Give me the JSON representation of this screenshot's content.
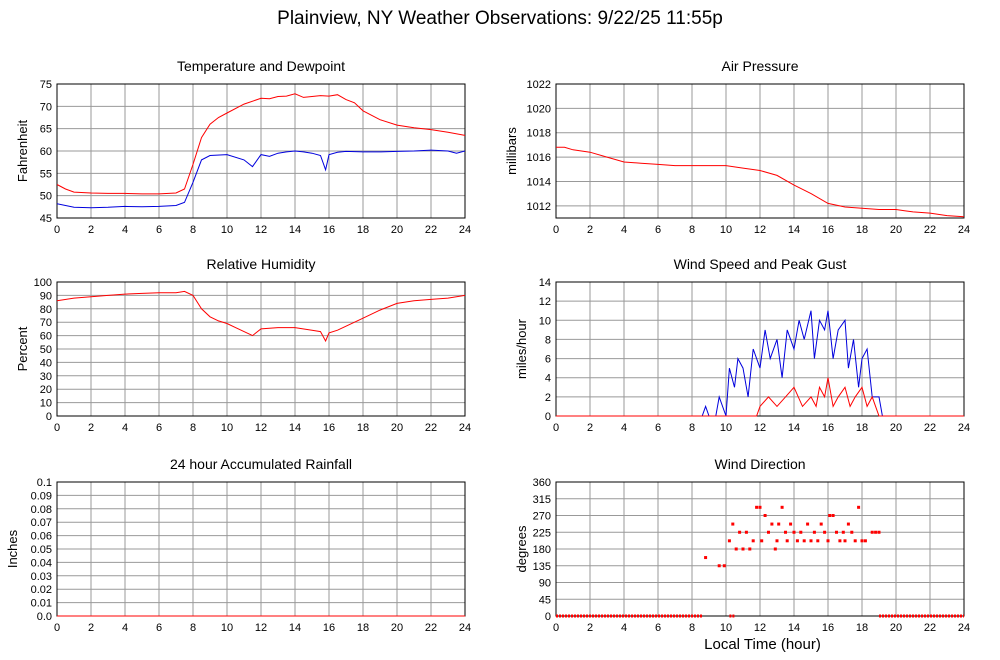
{
  "page": {
    "title": "Plainview, NY Weather Observations: 9/22/25 11:55p",
    "x_axis_title": "Local Time (hour)"
  },
  "colors": {
    "red": "#ff0000",
    "blue": "#0000dd",
    "grid": "#999999"
  },
  "chart_data": [
    {
      "id": "temperature",
      "type": "line",
      "title": "Temperature and Dewpoint",
      "ylabel": "Fahrenheit",
      "xlim": [
        0,
        24
      ],
      "ylim": [
        45,
        75
      ],
      "xticks": [
        0,
        2,
        4,
        6,
        8,
        10,
        12,
        14,
        16,
        18,
        20,
        22,
        24
      ],
      "yticks": [
        45,
        50,
        55,
        60,
        65,
        70,
        75
      ],
      "grid": true,
      "series": [
        {
          "color": "red",
          "x": [
            0,
            0.5,
            1,
            2,
            3,
            4,
            5,
            6,
            7,
            7.5,
            8,
            8.5,
            9,
            9.5,
            10,
            11,
            12,
            12.5,
            13,
            13.5,
            14,
            14.5,
            15,
            15.5,
            16,
            16.5,
            17,
            17.5,
            18,
            19,
            20,
            21,
            22,
            23,
            24
          ],
          "y": [
            52.5,
            51.5,
            50.8,
            50.6,
            50.5,
            50.5,
            50.4,
            50.4,
            50.6,
            51.5,
            57,
            63,
            66,
            67.5,
            68.5,
            70.5,
            71.8,
            71.7,
            72.2,
            72.3,
            72.8,
            72,
            72.2,
            72.4,
            72.3,
            72.6,
            71.5,
            70.8,
            69,
            67,
            65.8,
            65.2,
            64.8,
            64.2,
            63.5
          ]
        },
        {
          "color": "blue",
          "x": [
            0,
            1,
            2,
            3,
            4,
            5,
            6,
            7,
            7.5,
            8,
            8.5,
            9,
            10,
            11,
            11.5,
            12,
            12.5,
            13,
            13.5,
            14,
            14.5,
            15,
            15.5,
            15.8,
            16,
            16.5,
            17,
            18,
            19,
            20,
            21,
            22,
            23,
            23.5,
            24
          ],
          "y": [
            48.2,
            47.4,
            47.3,
            47.4,
            47.6,
            47.5,
            47.6,
            47.8,
            48.5,
            53,
            58,
            59,
            59.2,
            58,
            56.5,
            59.2,
            58.8,
            59.5,
            59.8,
            60,
            59.8,
            59.5,
            59,
            55.8,
            59.2,
            59.7,
            59.9,
            59.8,
            59.8,
            59.9,
            60,
            60.2,
            60,
            59.5,
            60
          ]
        }
      ]
    },
    {
      "id": "pressure",
      "type": "line",
      "title": "Air Pressure",
      "ylabel": "millibars",
      "xlim": [
        0,
        24
      ],
      "ylim": [
        1011,
        1022
      ],
      "xticks": [
        0,
        2,
        4,
        6,
        8,
        10,
        12,
        14,
        16,
        18,
        20,
        22,
        24
      ],
      "yticks": [
        1012,
        1014,
        1016,
        1018,
        1020,
        1022
      ],
      "grid": true,
      "series": [
        {
          "color": "red",
          "x": [
            0,
            0.5,
            1,
            2,
            3,
            4,
            5,
            6,
            7,
            8,
            9,
            10,
            11,
            12,
            13,
            14,
            15,
            16,
            17,
            18,
            19,
            20,
            20.5,
            21,
            22,
            23,
            24
          ],
          "y": [
            1016.8,
            1016.8,
            1016.6,
            1016.4,
            1016,
            1015.6,
            1015.5,
            1015.4,
            1015.3,
            1015.3,
            1015.3,
            1015.3,
            1015.1,
            1014.9,
            1014.5,
            1013.7,
            1013,
            1012.2,
            1011.9,
            1011.8,
            1011.7,
            1011.7,
            1011.6,
            1011.5,
            1011.4,
            1011.2,
            1011.1
          ]
        }
      ]
    },
    {
      "id": "humidity",
      "type": "line",
      "title": "Relative Humidity",
      "ylabel": "Percent",
      "xlim": [
        0,
        24
      ],
      "ylim": [
        0,
        100
      ],
      "xticks": [
        0,
        2,
        4,
        6,
        8,
        10,
        12,
        14,
        16,
        18,
        20,
        22,
        24
      ],
      "yticks": [
        0,
        10,
        20,
        30,
        40,
        50,
        60,
        70,
        80,
        90,
        100
      ],
      "grid": true,
      "series": [
        {
          "color": "red",
          "x": [
            0,
            1,
            2,
            3,
            4,
            5,
            6,
            7,
            7.5,
            8,
            8.5,
            9,
            9.5,
            10,
            10.5,
            11,
            11.5,
            12,
            13,
            14,
            15,
            15.5,
            15.8,
            16,
            16.5,
            17,
            18,
            19,
            20,
            21,
            22,
            23,
            24
          ],
          "y": [
            86,
            88,
            89,
            90,
            91,
            91.5,
            92,
            92,
            93,
            90,
            80,
            74,
            71,
            69,
            66,
            63,
            60,
            65,
            66,
            66,
            64,
            63,
            56,
            62,
            64,
            67,
            73,
            79,
            84,
            86,
            87,
            88,
            90
          ]
        }
      ]
    },
    {
      "id": "wind_speed",
      "type": "line",
      "title": "Wind Speed and Peak Gust",
      "ylabel": "miles/hour",
      "xlim": [
        0,
        24
      ],
      "ylim": [
        0,
        14
      ],
      "xticks": [
        0,
        2,
        4,
        6,
        8,
        10,
        12,
        14,
        16,
        18,
        20,
        22,
        24
      ],
      "yticks": [
        0,
        2,
        4,
        6,
        8,
        10,
        12,
        14
      ],
      "grid": true,
      "series": [
        {
          "color": "blue",
          "x": [
            0,
            8.6,
            8.8,
            9,
            9.4,
            9.6,
            10,
            10.2,
            10.5,
            10.7,
            11,
            11.3,
            11.6,
            12,
            12.3,
            12.6,
            13,
            13.3,
            13.6,
            14,
            14.3,
            14.6,
            15,
            15.2,
            15.5,
            15.8,
            16,
            16.3,
            16.6,
            17,
            17.2,
            17.5,
            17.8,
            18,
            18.3,
            18.6,
            19,
            19.2,
            24
          ],
          "y": [
            0,
            0,
            1,
            0,
            0,
            2,
            0,
            5,
            3,
            6,
            5,
            2,
            7,
            5,
            9,
            6,
            8,
            4,
            9,
            7,
            10,
            8,
            11,
            6,
            10,
            9,
            11,
            6,
            9,
            10,
            5,
            8,
            3,
            6,
            7,
            2,
            2,
            0,
            0
          ]
        },
        {
          "color": "red",
          "x": [
            0,
            11.8,
            12,
            12.5,
            13,
            13.5,
            14,
            14.5,
            15,
            15.3,
            15.5,
            15.8,
            16,
            16.3,
            16.6,
            17,
            17.3,
            17.6,
            18,
            18.3,
            18.6,
            19,
            24
          ],
          "y": [
            0,
            0,
            1,
            2,
            1,
            2,
            3,
            1,
            2,
            1,
            3,
            2,
            4,
            1,
            2,
            3,
            1,
            2,
            3,
            1,
            2,
            0,
            0
          ]
        }
      ]
    },
    {
      "id": "rainfall",
      "type": "line",
      "title": "24 hour Accumulated Rainfall",
      "ylabel": "Inches",
      "xlim": [
        0,
        24
      ],
      "ylim": [
        0,
        0.1
      ],
      "xticks": [
        0,
        2,
        4,
        6,
        8,
        10,
        12,
        14,
        16,
        18,
        20,
        22,
        24
      ],
      "yticks": [
        "0.0",
        "0.01",
        "0.02",
        "0.03",
        "0.04",
        "0.05",
        "0.06",
        "0.07",
        "0.08",
        "0.09",
        "0.1"
      ],
      "grid": true,
      "series": [
        {
          "color": "red",
          "x": [
            0,
            24
          ],
          "y": [
            0,
            0
          ]
        }
      ]
    },
    {
      "id": "wind_direction",
      "type": "scatter",
      "title": "Wind Direction",
      "ylabel": "degrees",
      "xlim": [
        0,
        24
      ],
      "ylim": [
        0,
        360
      ],
      "xticks": [
        0,
        2,
        4,
        6,
        8,
        10,
        12,
        14,
        16,
        18,
        20,
        22,
        24
      ],
      "yticks": [
        0,
        45,
        90,
        135,
        180,
        225,
        270,
        315,
        360
      ],
      "grid": true,
      "series": [
        {
          "color": "red",
          "x": [
            8.8,
            9.6,
            9.9,
            10.2,
            10.4,
            10.6,
            10.8,
            11,
            11.2,
            11.4,
            11.6,
            11.8,
            12,
            12.1,
            12.3,
            12.5,
            12.7,
            12.9,
            13,
            13.1,
            13.3,
            13.5,
            13.6,
            13.8,
            14,
            14.2,
            14.4,
            14.6,
            14.8,
            15,
            15.2,
            15.4,
            15.6,
            15.8,
            16,
            16.1,
            16.3,
            16.5,
            16.7,
            16.9,
            17,
            17.2,
            17.4,
            17.6,
            17.8,
            18,
            18.2,
            18.6,
            18.8,
            19
          ],
          "y": [
            157,
            135,
            135,
            202,
            247,
            180,
            225,
            180,
            225,
            180,
            202,
            292,
            292,
            202,
            270,
            225,
            247,
            180,
            202,
            247,
            292,
            225,
            202,
            247,
            225,
            202,
            225,
            202,
            247,
            202,
            225,
            202,
            247,
            225,
            202,
            270,
            270,
            225,
            202,
            225,
            202,
            247,
            225,
            202,
            292,
            202,
            202,
            225,
            225,
            225
          ]
        }
      ]
    }
  ]
}
